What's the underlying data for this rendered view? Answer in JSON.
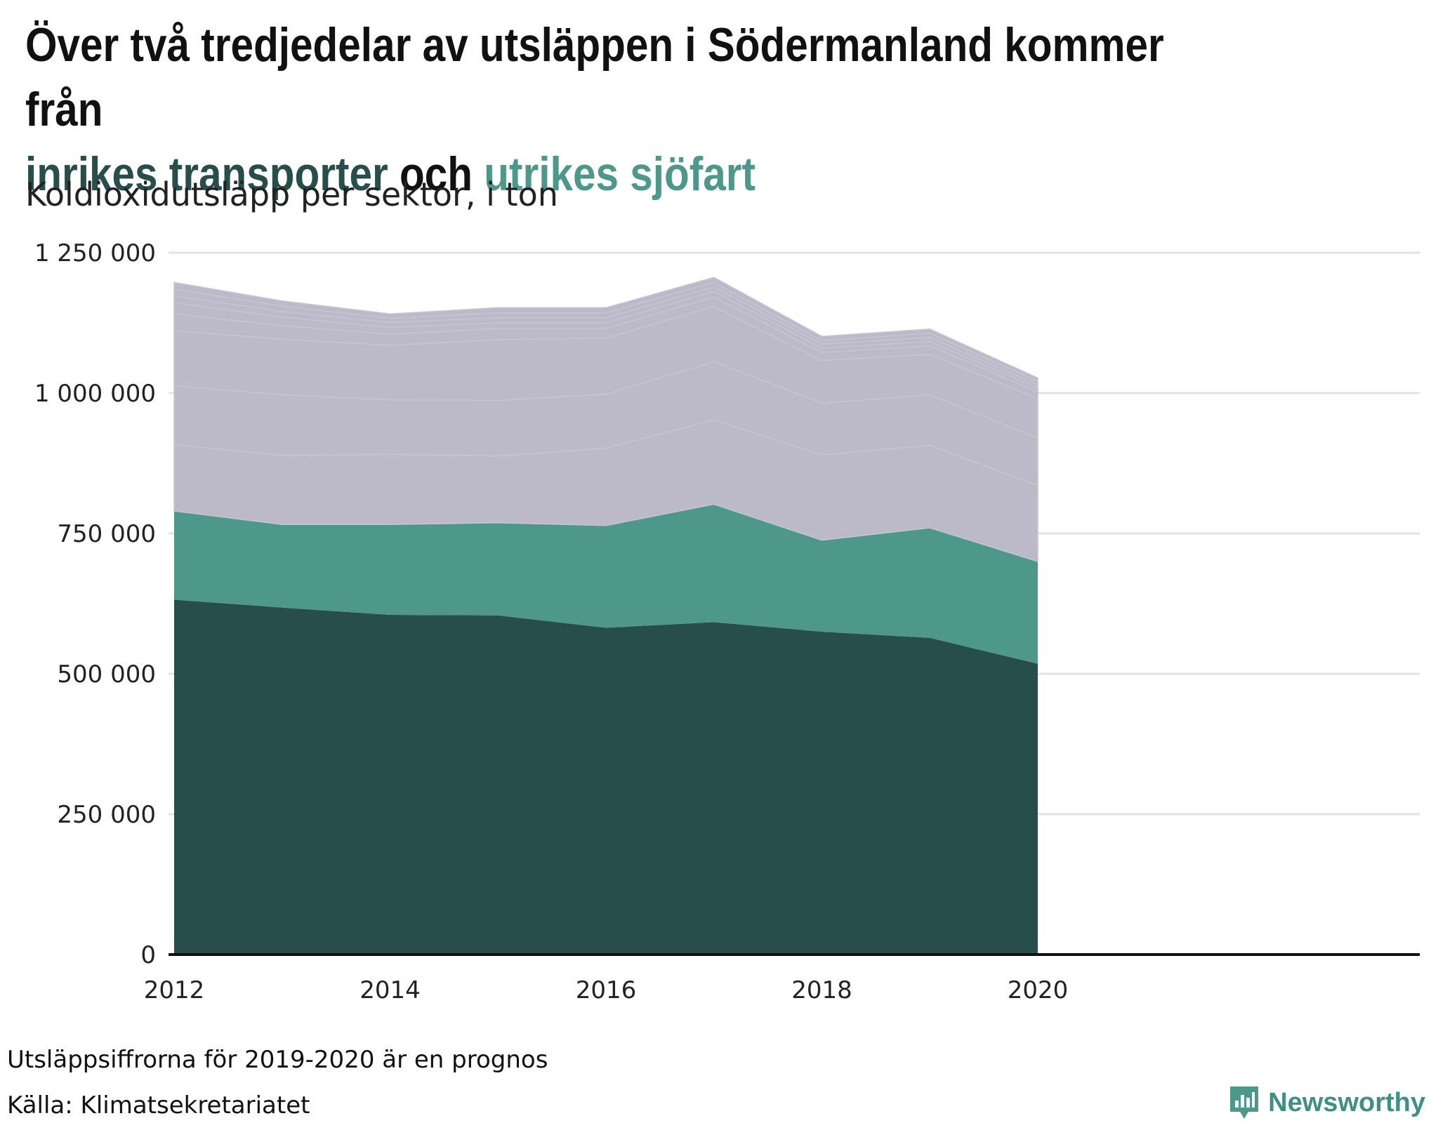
{
  "title": {
    "line1": "Över två tredjedelar av utsläppen i Södermanland kommer från",
    "highlight1": "inrikes transporter",
    "connector": "och",
    "highlight2": "utrikes sjöfart"
  },
  "subtitle": "Koldioxidutsläpp per sektor, i ton",
  "footnote": "Utsläppsiffrorna för 2019-2020 är en prognos",
  "source": "Källa: Klimatsekretariatet",
  "brand": {
    "name": "Newsworthy",
    "icon": "newsworthy-logo-icon"
  },
  "colors": {
    "inrikes_transporter": "#284e4b",
    "utrikes_sjofart": "#4d978b",
    "other_sectors": "#bcb9c8",
    "grid": "#e3e3e6",
    "axis": "#111111"
  },
  "chart_data": {
    "type": "area",
    "stacked": true,
    "x": [
      2012,
      2013,
      2014,
      2015,
      2016,
      2017,
      2018,
      2019,
      2020
    ],
    "xticks": [
      "2012",
      "2014",
      "2016",
      "2018",
      "2020"
    ],
    "yticks": [
      "0",
      "250 000",
      "500 000",
      "750 000",
      "1 000 000",
      "1 250 000"
    ],
    "ylim": [
      0,
      1250000
    ],
    "grid": true,
    "series": [
      {
        "name": "inrikes transporter",
        "color": "#284e4b",
        "values": [
          632000,
          618000,
          605000,
          604000,
          582000,
          592000,
          575000,
          564000,
          518000
        ]
      },
      {
        "name": "utrikes sjöfart",
        "color": "#4d978b",
        "values": [
          158000,
          148000,
          161000,
          165000,
          182000,
          210000,
          163000,
          196000,
          182000
        ]
      },
      {
        "color": "#bcb9c8",
        "values": [
          118000,
          123000,
          125000,
          119000,
          138000,
          150000,
          152000,
          147000,
          135000
        ]
      },
      {
        "color": "#bcb9c8",
        "values": [
          105000,
          108000,
          97000,
          99000,
          96000,
          104000,
          92000,
          90000,
          85000
        ]
      },
      {
        "color": "#bcb9c8",
        "values": [
          98000,
          99000,
          97000,
          108000,
          100000,
          98000,
          76000,
          72000,
          70000
        ]
      },
      {
        "color": "#bcb9c8",
        "values": [
          30000,
          24000,
          20000,
          20000,
          17000,
          17000,
          14000,
          15000,
          12000
        ]
      },
      {
        "color": "#bcb9c8",
        "values": [
          20000,
          15000,
          12000,
          10000,
          10000,
          10000,
          8000,
          8000,
          7000
        ]
      },
      {
        "color": "#bcb9c8",
        "values": [
          12000,
          10000,
          9000,
          9000,
          9000,
          8000,
          7000,
          7000,
          6000
        ]
      },
      {
        "color": "#bcb9c8",
        "values": [
          12000,
          10000,
          7000,
          9000,
          9000,
          8000,
          6000,
          8000,
          6000
        ]
      },
      {
        "color": "#bcb9c8",
        "values": [
          12000,
          9000,
          8000,
          9000,
          9000,
          9000,
          8000,
          7000,
          6000
        ]
      }
    ]
  }
}
